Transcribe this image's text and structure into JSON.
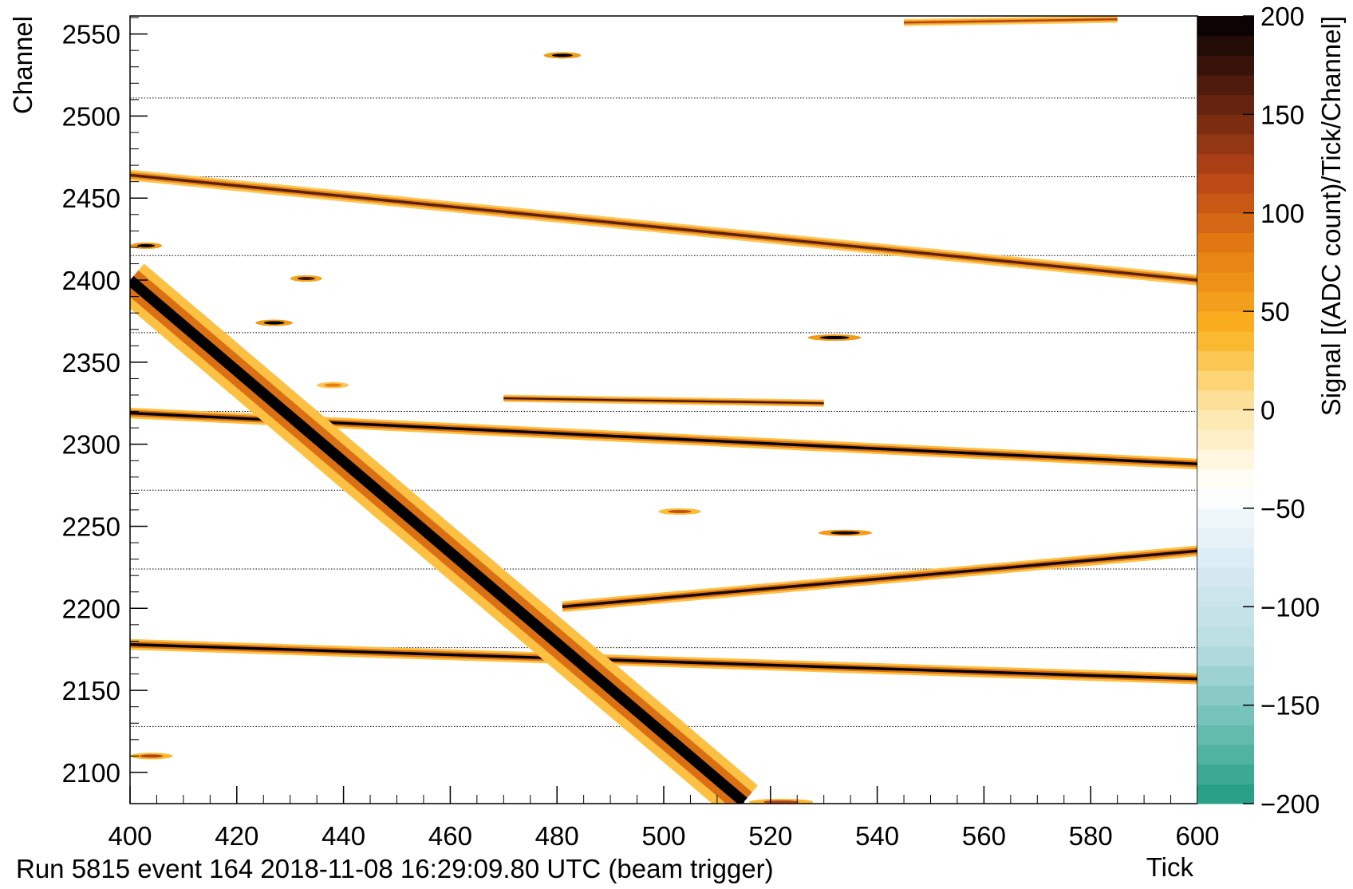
{
  "chart_data": {
    "type": "heatmap",
    "footer": "Run 5815 event 164 2018-11-08 16:29:09.80 UTC (beam trigger)",
    "xlabel": "Tick",
    "ylabel": "Channel",
    "zlabel": "Signal [(ADC count)/Tick/Channel]",
    "xlim": [
      400,
      600
    ],
    "xticks": [
      400,
      420,
      440,
      460,
      480,
      500,
      520,
      540,
      560,
      580,
      600
    ],
    "ylim": [
      2081,
      2561
    ],
    "yticks": [
      2100,
      2150,
      2200,
      2250,
      2300,
      2350,
      2400,
      2450,
      2500,
      2550
    ],
    "zlim": [
      -200,
      200
    ],
    "zticks": [
      {
        "value": -200,
        "label": "−200"
      },
      {
        "value": -150,
        "label": "−150"
      },
      {
        "value": -100,
        "label": "−100"
      },
      {
        "value": -50,
        "label": "−50"
      },
      0,
      50,
      100,
      150,
      200
    ],
    "palette": [
      "#1f9b80",
      "#6dbfb5",
      "#b8dde2",
      "#d8eaf3",
      "#ffffff",
      "#fde6a8",
      "#fbb320",
      "#e67e12",
      "#b54316",
      "#5a1f0e",
      "#000000"
    ],
    "boundaries": [
      2511,
      2463,
      2415,
      2368,
      2320,
      2272,
      2224,
      2176,
      2128
    ],
    "tracks": [
      {
        "ticks": [
          400,
          600
        ],
        "channels": [
          2464,
          2400
        ],
        "width": 3,
        "signal": 160
      },
      {
        "ticks": [
          400,
          600
        ],
        "channels": [
          2319,
          2288
        ],
        "width": 3,
        "signal": 200
      },
      {
        "ticks": [
          481,
          600
        ],
        "channels": [
          2201,
          2235
        ],
        "width": 3,
        "signal": 190
      },
      {
        "ticks": [
          400,
          600
        ],
        "channels": [
          2178,
          2157
        ],
        "width": 3,
        "signal": 200
      },
      {
        "ticks": [
          400,
          515
        ],
        "channels": [
          2400,
          2082
        ],
        "width": 12,
        "signal": 200
      },
      {
        "ticks": [
          470,
          530
        ],
        "channels": [
          2328,
          2325
        ],
        "width": 2,
        "signal": 170
      },
      {
        "ticks": [
          545,
          585
        ],
        "channels": [
          2557,
          2559
        ],
        "width": 2,
        "signal": 120
      }
    ],
    "hits": [
      {
        "tick": 481,
        "channel": 2537,
        "length": 7,
        "signal": 200
      },
      {
        "tick": 403,
        "channel": 2421,
        "length": 6,
        "signal": 200
      },
      {
        "tick": 433,
        "channel": 2401,
        "length": 6,
        "signal": 170
      },
      {
        "tick": 427,
        "channel": 2374,
        "length": 7,
        "signal": 200
      },
      {
        "tick": 532,
        "channel": 2365,
        "length": 10,
        "signal": 200
      },
      {
        "tick": 534,
        "channel": 2246,
        "length": 10,
        "signal": 190
      },
      {
        "tick": 404,
        "channel": 2110,
        "length": 8,
        "signal": 120
      },
      {
        "tick": 522,
        "channel": 2082,
        "length": 12,
        "signal": 120
      },
      {
        "tick": 438,
        "channel": 2336,
        "length": 6,
        "signal": 80
      },
      {
        "tick": 503,
        "channel": 2259,
        "length": 8,
        "signal": 110
      }
    ]
  }
}
